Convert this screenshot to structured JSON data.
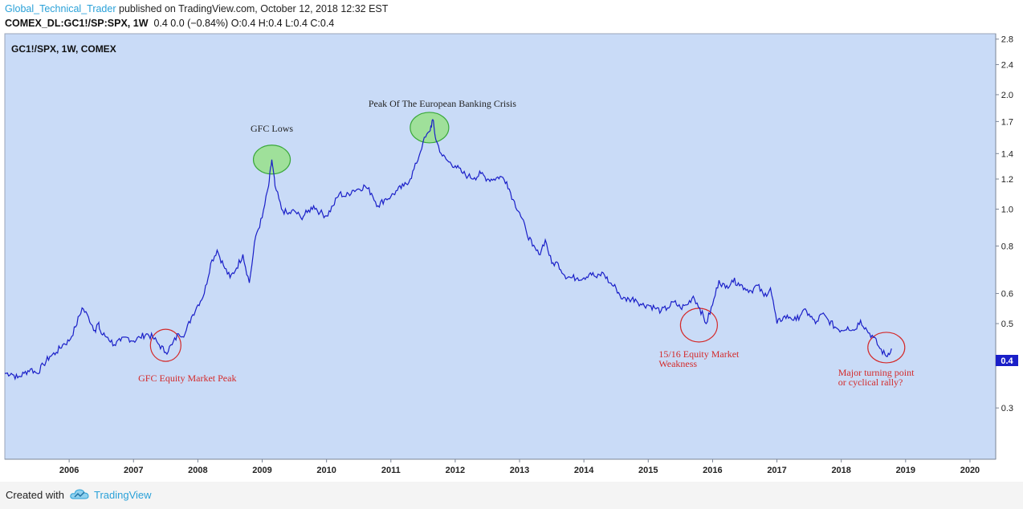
{
  "header": {
    "author": "Global_Technical_Trader",
    "published": " published on TradingView.com, October 12, 2018 12:32 EST",
    "symbol_line": "COMEX_DL:GC1!/SP:SPX, 1W",
    "ohlc_line": "0.4 0.0 (−0.84%) O:0.4 H:0.4 L:0.4 C:0.4"
  },
  "chart": {
    "legend": "GC1!/SPX, 1W, COMEX",
    "price_label": "0.4"
  },
  "footer": {
    "created_with": "Created with",
    "brand": "TradingView",
    "logo_icon": "tradingview-cloud-icon"
  },
  "colors": {
    "plot_background": "#c9dbf7",
    "line": "#1a1fc8",
    "price_label_bg": "#1a1fc8",
    "green_circle_fill": "#9fe09a",
    "green_circle_stroke": "#3aa83a",
    "red_circle_stroke": "#d42a2a",
    "annotation_red": "#d42a2a"
  },
  "chart_data": {
    "type": "line",
    "title": "GC1!/SPX, 1W, COMEX",
    "xlabel": "",
    "ylabel": "",
    "y_scale": "log",
    "ylim": [
      0.2,
      2.8
    ],
    "xlim": [
      2005.0,
      2020.4
    ],
    "yticks": [
      0.3,
      0.4,
      0.5,
      0.6,
      0.8,
      1.0,
      1.2,
      1.4,
      1.7,
      2.0,
      2.4,
      2.8
    ],
    "yticks_labels": [
      "0.3",
      "0.4",
      "0.5",
      "0.6",
      "0.8",
      "1.0",
      "1.2",
      "1.4",
      "1.7",
      "2.0",
      "2.4",
      "2.8"
    ],
    "xticks": [
      2006,
      2007,
      2008,
      2009,
      2010,
      2011,
      2012,
      2013,
      2014,
      2015,
      2016,
      2017,
      2018,
      2019,
      2020
    ],
    "xticks_labels": [
      "2006",
      "2007",
      "2008",
      "2009",
      "2010",
      "2011",
      "2012",
      "2013",
      "2014",
      "2015",
      "2016",
      "2017",
      "2018",
      "2019",
      "2020"
    ],
    "grid": false,
    "series": [
      {
        "name": "GC1!/SPX",
        "x": [
          2005.0,
          2005.1,
          2005.2,
          2005.3,
          2005.4,
          2005.5,
          2005.6,
          2005.7,
          2005.8,
          2005.9,
          2006.0,
          2006.1,
          2006.2,
          2006.3,
          2006.4,
          2006.45,
          2006.5,
          2006.6,
          2006.7,
          2006.8,
          2006.9,
          2007.0,
          2007.1,
          2007.2,
          2007.3,
          2007.4,
          2007.5,
          2007.6,
          2007.7,
          2007.8,
          2007.9,
          2008.0,
          2008.1,
          2008.2,
          2008.3,
          2008.4,
          2008.5,
          2008.6,
          2008.7,
          2008.8,
          2008.9,
          2009.0,
          2009.1,
          2009.15,
          2009.2,
          2009.3,
          2009.4,
          2009.5,
          2009.6,
          2009.7,
          2009.8,
          2009.9,
          2010.0,
          2010.1,
          2010.2,
          2010.3,
          2010.4,
          2010.5,
          2010.6,
          2010.7,
          2010.8,
          2010.9,
          2011.0,
          2011.1,
          2011.2,
          2011.3,
          2011.4,
          2011.5,
          2011.6,
          2011.65,
          2011.7,
          2011.8,
          2011.9,
          2012.0,
          2012.1,
          2012.2,
          2012.3,
          2012.4,
          2012.5,
          2012.6,
          2012.7,
          2012.8,
          2012.9,
          2013.0,
          2013.1,
          2013.2,
          2013.3,
          2013.4,
          2013.5,
          2013.6,
          2013.7,
          2013.8,
          2013.9,
          2014.0,
          2014.1,
          2014.2,
          2014.3,
          2014.4,
          2014.5,
          2014.6,
          2014.7,
          2014.8,
          2014.9,
          2015.0,
          2015.1,
          2015.2,
          2015.3,
          2015.4,
          2015.5,
          2015.6,
          2015.7,
          2015.8,
          2015.9,
          2016.0,
          2016.1,
          2016.2,
          2016.3,
          2016.4,
          2016.5,
          2016.6,
          2016.7,
          2016.8,
          2016.9,
          2017.0,
          2017.1,
          2017.2,
          2017.3,
          2017.4,
          2017.5,
          2017.6,
          2017.7,
          2017.8,
          2017.9,
          2018.0,
          2018.1,
          2018.2,
          2018.3,
          2018.4,
          2018.5,
          2018.6,
          2018.7,
          2018.78
        ],
        "y": [
          0.37,
          0.37,
          0.36,
          0.37,
          0.38,
          0.37,
          0.39,
          0.41,
          0.42,
          0.44,
          0.45,
          0.49,
          0.55,
          0.52,
          0.48,
          0.5,
          0.47,
          0.46,
          0.44,
          0.45,
          0.46,
          0.45,
          0.46,
          0.47,
          0.46,
          0.44,
          0.42,
          0.44,
          0.47,
          0.47,
          0.52,
          0.56,
          0.6,
          0.72,
          0.78,
          0.71,
          0.66,
          0.7,
          0.76,
          0.64,
          0.85,
          0.95,
          1.15,
          1.35,
          1.15,
          1.0,
          0.97,
          0.99,
          0.95,
          0.98,
          1.02,
          0.98,
          0.96,
          1.02,
          1.1,
          1.08,
          1.12,
          1.13,
          1.15,
          1.1,
          1.02,
          1.06,
          1.08,
          1.12,
          1.15,
          1.2,
          1.32,
          1.5,
          1.6,
          1.72,
          1.52,
          1.38,
          1.33,
          1.3,
          1.25,
          1.22,
          1.21,
          1.24,
          1.2,
          1.2,
          1.22,
          1.18,
          1.06,
          0.98,
          0.88,
          0.8,
          0.76,
          0.83,
          0.72,
          0.72,
          0.67,
          0.66,
          0.66,
          0.66,
          0.68,
          0.66,
          0.68,
          0.64,
          0.62,
          0.58,
          0.58,
          0.58,
          0.56,
          0.56,
          0.55,
          0.54,
          0.55,
          0.57,
          0.55,
          0.56,
          0.59,
          0.55,
          0.5,
          0.56,
          0.65,
          0.62,
          0.65,
          0.64,
          0.62,
          0.61,
          0.63,
          0.59,
          0.62,
          0.5,
          0.52,
          0.52,
          0.51,
          0.54,
          0.53,
          0.5,
          0.53,
          0.51,
          0.49,
          0.48,
          0.49,
          0.48,
          0.51,
          0.48,
          0.46,
          0.43,
          0.41,
          0.43
        ]
      }
    ],
    "annotations": [
      {
        "text": "GFC Lows",
        "x": 2009.15,
        "y": 1.35,
        "marker": "green-circle"
      },
      {
        "text": "Peak Of The European Banking Crisis",
        "x": 2011.65,
        "y": 1.72,
        "marker": "green-circle"
      },
      {
        "text": "GFC Equity Market Peak",
        "x": 2007.45,
        "y": 0.43,
        "marker": "red-circle"
      },
      {
        "text": "15/16 Equity Market Weakness",
        "x": 2015.85,
        "y": 0.52,
        "marker": "red-circle"
      },
      {
        "text": "Major turning point or cyclical rally?",
        "x": 2018.7,
        "y": 0.42,
        "marker": "red-circle"
      }
    ],
    "current_value": 0.4
  }
}
